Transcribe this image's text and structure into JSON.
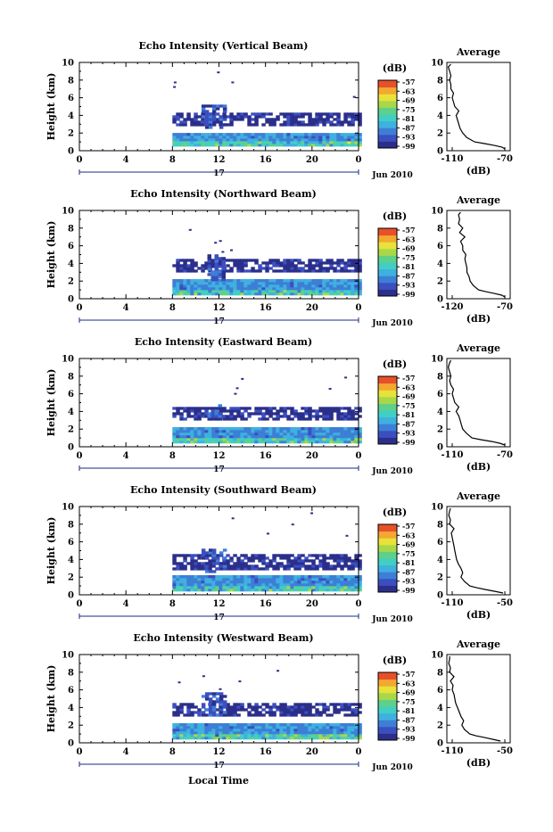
{
  "figure": {
    "x_axis_title": "Local Time",
    "date_label": "Jun 2010",
    "day_label": "17",
    "colorbar_unit": "(dB)",
    "profile_title": "Average",
    "profile_xlabel": "(dB)",
    "heatmap_ylabel": "Height (km)"
  },
  "chart_data": [
    {
      "type": "heatmap",
      "title": "Echo Intensity (Vertical Beam)",
      "ylabel": "Height (km)",
      "xlabel": "Local Time",
      "x_ticks": [
        "0",
        "4",
        "8",
        "12",
        "16",
        "20",
        "0"
      ],
      "xlim": [
        0,
        24
      ],
      "ylim": [
        0,
        10
      ],
      "y_ticks": [
        "0",
        "2",
        "4",
        "6",
        "8",
        "10"
      ],
      "colorbar": {
        "unit": "(dB)",
        "ticks": [
          "-57",
          "-63",
          "-69",
          "-75",
          "-81",
          "-87",
          "-93",
          "-99"
        ],
        "range": [
          -99,
          -57
        ]
      },
      "data_start_hour": 8,
      "layers": [
        {
          "label": "main echo layer",
          "from_hour": 8,
          "to_hour": 24,
          "bottom_km": 0.5,
          "top_km": 2.0,
          "intensity_db": -87
        },
        {
          "label": "upper echo layer",
          "from_hour": 8,
          "to_hour": 24,
          "bottom_km": 2.8,
          "top_km": 4.2,
          "intensity_db": -97
        },
        {
          "label": "convective plume",
          "from_hour": 10.5,
          "to_hour": 12.5,
          "bottom_km": 2.5,
          "top_km": 5.2,
          "intensity_db": -93
        }
      ],
      "profile": {
        "title": "Average",
        "xlabel": "(dB)",
        "xlim": [
          -110,
          -70
        ],
        "x_ticks": [
          "-110",
          "-70"
        ],
        "ylim": [
          0,
          10
        ],
        "height_km": [
          0.2,
          0.4,
          0.6,
          0.8,
          1.0,
          1.5,
          2.0,
          2.5,
          3.0,
          3.5,
          4.0,
          4.5,
          5.0,
          5.5,
          6.0,
          6.5,
          7.0,
          7.5,
          8.0,
          8.5,
          9.0,
          9.5,
          9.8
        ],
        "echo_db": [
          -70,
          -72,
          -78,
          -85,
          -93,
          -99,
          -102,
          -104,
          -105,
          -106,
          -107,
          -105,
          -108,
          -109,
          -110,
          -109,
          -111,
          -111,
          -112,
          -111,
          -112,
          -113,
          -111
        ]
      }
    },
    {
      "type": "heatmap",
      "title": "Echo Intensity (Northward Beam)",
      "ylabel": "Height (km)",
      "xlabel": "Local Time",
      "x_ticks": [
        "0",
        "4",
        "8",
        "12",
        "16",
        "20",
        "0"
      ],
      "xlim": [
        0,
        24
      ],
      "ylim": [
        0,
        10
      ],
      "y_ticks": [
        "0",
        "2",
        "4",
        "6",
        "8",
        "10"
      ],
      "colorbar": {
        "unit": "(dB)",
        "ticks": [
          "-57",
          "-63",
          "-69",
          "-75",
          "-81",
          "-87",
          "-93",
          "-99"
        ],
        "range": [
          -99,
          -57
        ]
      },
      "data_start_hour": 8,
      "layers": [
        {
          "label": "main echo layer",
          "from_hour": 8,
          "to_hour": 24,
          "bottom_km": 0.4,
          "top_km": 2.2,
          "intensity_db": -87
        },
        {
          "label": "upper echo layer",
          "from_hour": 8,
          "to_hour": 24,
          "bottom_km": 3.0,
          "top_km": 4.5,
          "intensity_db": -97
        },
        {
          "label": "convective plume",
          "from_hour": 11,
          "to_hour": 12.5,
          "bottom_km": 2.0,
          "top_km": 4.8,
          "intensity_db": -93
        }
      ],
      "profile": {
        "title": "Average",
        "xlabel": "(dB)",
        "xlim": [
          -120,
          -70
        ],
        "x_ticks": [
          "-120",
          "-70"
        ],
        "ylim": [
          0,
          10
        ],
        "height_km": [
          0.2,
          0.4,
          0.6,
          0.8,
          1.0,
          1.5,
          2.0,
          2.5,
          3.0,
          3.5,
          4.0,
          4.5,
          5.0,
          5.5,
          6.0,
          6.5,
          7.0,
          7.5,
          8.0,
          8.5,
          9.0,
          9.5,
          9.8
        ],
        "echo_db": [
          -70,
          -73,
          -80,
          -88,
          -95,
          -100,
          -103,
          -104,
          -106,
          -106,
          -107,
          -108,
          -107,
          -110,
          -110,
          -112,
          -108,
          -113,
          -110,
          -114,
          -113,
          -114,
          -112
        ]
      }
    },
    {
      "type": "heatmap",
      "title": "Echo Intensity (Eastward Beam)",
      "ylabel": "Height (km)",
      "xlabel": "Local Time",
      "x_ticks": [
        "0",
        "4",
        "8",
        "12",
        "16",
        "20",
        "0"
      ],
      "xlim": [
        0,
        24
      ],
      "ylim": [
        0,
        10
      ],
      "y_ticks": [
        "0",
        "2",
        "4",
        "6",
        "8",
        "10"
      ],
      "colorbar": {
        "unit": "(dB)",
        "ticks": [
          "-57",
          "-63",
          "-69",
          "-75",
          "-81",
          "-87",
          "-93",
          "-99"
        ],
        "range": [
          -99,
          -57
        ]
      },
      "data_start_hour": 8,
      "layers": [
        {
          "label": "main echo layer",
          "from_hour": 8,
          "to_hour": 24,
          "bottom_km": 0.4,
          "top_km": 2.2,
          "intensity_db": -87
        },
        {
          "label": "upper echo layer",
          "from_hour": 8,
          "to_hour": 24,
          "bottom_km": 3.0,
          "top_km": 4.5,
          "intensity_db": -97
        },
        {
          "label": "convective plume",
          "from_hour": 11,
          "to_hour": 12.5,
          "bottom_km": 3.0,
          "top_km": 4.8,
          "intensity_db": -93
        }
      ],
      "profile": {
        "title": "Average",
        "xlabel": "(dB)",
        "xlim": [
          -110,
          -70
        ],
        "x_ticks": [
          "-110",
          "-70"
        ],
        "ylim": [
          0,
          10
        ],
        "height_km": [
          0.2,
          0.4,
          0.6,
          0.8,
          1.0,
          1.5,
          2.0,
          2.5,
          3.0,
          3.5,
          4.0,
          4.5,
          5.0,
          5.5,
          6.0,
          6.5,
          7.0,
          7.5,
          8.0,
          8.5,
          9.0,
          9.5,
          9.8
        ],
        "echo_db": [
          -70,
          -74,
          -80,
          -88,
          -95,
          -99,
          -102,
          -103,
          -104,
          -105,
          -107,
          -105,
          -108,
          -109,
          -110,
          -109,
          -111,
          -112,
          -111,
          -112,
          -113,
          -112,
          -111
        ]
      }
    },
    {
      "type": "heatmap",
      "title": "Echo Intensity (Southward Beam)",
      "ylabel": "Height (km)",
      "xlabel": "Local Time",
      "x_ticks": [
        "0",
        "4",
        "8",
        "12",
        "16",
        "20",
        "0"
      ],
      "xlim": [
        0,
        24
      ],
      "ylim": [
        0,
        10
      ],
      "y_ticks": [
        "0",
        "2",
        "4",
        "6",
        "8",
        "10"
      ],
      "colorbar": {
        "unit": "(dB)",
        "ticks": [
          "-57",
          "-63",
          "-69",
          "-75",
          "-81",
          "-87",
          "-93",
          "-99"
        ],
        "range": [
          -99,
          -57
        ]
      },
      "data_start_hour": 8,
      "layers": [
        {
          "label": "main echo layer",
          "from_hour": 8,
          "to_hour": 24,
          "bottom_km": 0.4,
          "top_km": 2.2,
          "intensity_db": -87
        },
        {
          "label": "upper echo layer",
          "from_hour": 8,
          "to_hour": 24,
          "bottom_km": 2.8,
          "top_km": 4.5,
          "intensity_db": -97
        },
        {
          "label": "convective plume",
          "from_hour": 10.5,
          "to_hour": 12.5,
          "bottom_km": 2.5,
          "top_km": 5.2,
          "intensity_db": -93
        }
      ],
      "profile": {
        "title": "Average",
        "xlabel": "(dB)",
        "xlim": [
          -110,
          -50
        ],
        "x_ticks": [
          "-110",
          "-50"
        ],
        "ylim": [
          0,
          10
        ],
        "height_km": [
          0.2,
          0.4,
          0.6,
          0.8,
          1.0,
          1.5,
          2.0,
          2.5,
          3.0,
          3.5,
          4.0,
          4.5,
          5.0,
          5.5,
          6.0,
          6.5,
          7.0,
          7.5,
          8.0,
          8.5,
          9.0,
          9.5,
          9.8
        ],
        "echo_db": [
          -52,
          -62,
          -72,
          -82,
          -90,
          -96,
          -100,
          -98,
          -100,
          -103,
          -105,
          -106,
          -107,
          -108,
          -109,
          -110,
          -111,
          -108,
          -113,
          -112,
          -114,
          -113,
          -112
        ]
      }
    },
    {
      "type": "heatmap",
      "title": "Echo Intensity (Westward Beam)",
      "ylabel": "Height (km)",
      "xlabel": "Local Time",
      "x_ticks": [
        "0",
        "4",
        "8",
        "12",
        "16",
        "20",
        "0"
      ],
      "xlim": [
        0,
        24
      ],
      "ylim": [
        0,
        10
      ],
      "y_ticks": [
        "0",
        "2",
        "4",
        "6",
        "8",
        "10"
      ],
      "colorbar": {
        "unit": "(dB)",
        "ticks": [
          "-57",
          "-63",
          "-69",
          "-75",
          "-81",
          "-87",
          "-93",
          "-99"
        ],
        "range": [
          -99,
          -57
        ]
      },
      "data_start_hour": 8,
      "layers": [
        {
          "label": "main echo layer",
          "from_hour": 8,
          "to_hour": 24,
          "bottom_km": 0.4,
          "top_km": 2.2,
          "intensity_db": -87
        },
        {
          "label": "upper echo layer",
          "from_hour": 8,
          "to_hour": 24,
          "bottom_km": 3.0,
          "top_km": 4.5,
          "intensity_db": -97
        },
        {
          "label": "convective plume",
          "from_hour": 10.5,
          "to_hour": 12.5,
          "bottom_km": 3.0,
          "top_km": 5.5,
          "intensity_db": -93
        }
      ],
      "profile": {
        "title": "Average",
        "xlabel": "(dB)",
        "xlim": [
          -110,
          -50
        ],
        "x_ticks": [
          "-110",
          "-50"
        ],
        "ylim": [
          0,
          10
        ],
        "height_km": [
          0.2,
          0.4,
          0.6,
          0.8,
          1.0,
          1.5,
          2.0,
          2.5,
          3.0,
          3.5,
          4.0,
          4.5,
          5.0,
          5.5,
          6.0,
          6.5,
          7.0,
          7.5,
          8.0,
          8.5,
          9.0,
          9.5,
          9.8
        ],
        "echo_db": [
          -55,
          -64,
          -73,
          -83,
          -90,
          -96,
          -99,
          -97,
          -100,
          -102,
          -104,
          -106,
          -107,
          -108,
          -110,
          -109,
          -112,
          -108,
          -113,
          -112,
          -114,
          -113,
          -113
        ]
      }
    }
  ],
  "colors": {
    "scale": [
      "#2b2f8a",
      "#3b4fc0",
      "#3d7fd6",
      "#3fb0e0",
      "#41cfc4",
      "#5fd08a",
      "#a8d84a",
      "#e8e23a",
      "#f3a830",
      "#e8502a"
    ]
  }
}
